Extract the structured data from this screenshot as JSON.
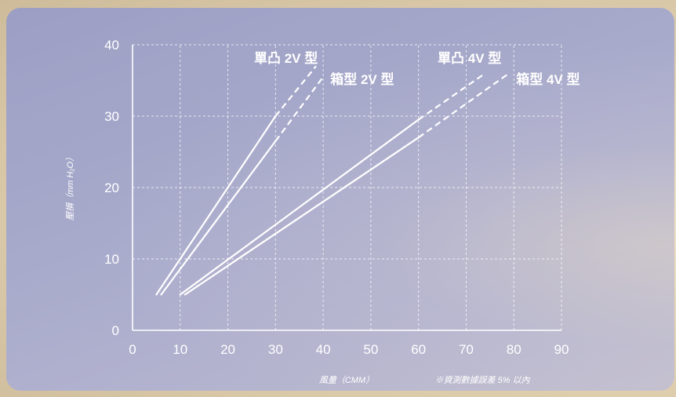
{
  "chart_data": {
    "type": "line",
    "xlabel": "風量（CMM）",
    "ylabel": "壓損（mm H₂O）",
    "note": "※資測數據誤差 5% 以內",
    "xlim": [
      0,
      90
    ],
    "ylim": [
      0,
      40
    ],
    "x_ticks": [
      "0",
      "10",
      "20",
      "30",
      "40",
      "50",
      "60",
      "70",
      "80",
      "90"
    ],
    "y_ticks": [
      "0",
      "10",
      "20",
      "30",
      "40"
    ],
    "grid": true,
    "series": [
      {
        "name": "單凸 2V 型",
        "points": [
          [
            5,
            5
          ],
          [
            30,
            30
          ]
        ],
        "dashed_to": [
          38.5,
          37
        ]
      },
      {
        "name": "箱型 2V 型",
        "points": [
          [
            6,
            5
          ],
          [
            30,
            26.5
          ]
        ],
        "dashed_to": [
          40,
          35.5
        ]
      },
      {
        "name": "單凸 4V 型",
        "points": [
          [
            10,
            5
          ],
          [
            60,
            29.5
          ]
        ],
        "dashed_to": [
          74,
          36
        ]
      },
      {
        "name": "箱型 4V 型",
        "points": [
          [
            11,
            5
          ],
          [
            60,
            27
          ]
        ],
        "dashed_to": [
          79,
          36
        ]
      }
    ],
    "label_positions": [
      [
        25.5,
        37.5
      ],
      [
        41.5,
        34.5
      ],
      [
        64,
        37.5
      ],
      [
        80.5,
        34.5
      ]
    ]
  }
}
